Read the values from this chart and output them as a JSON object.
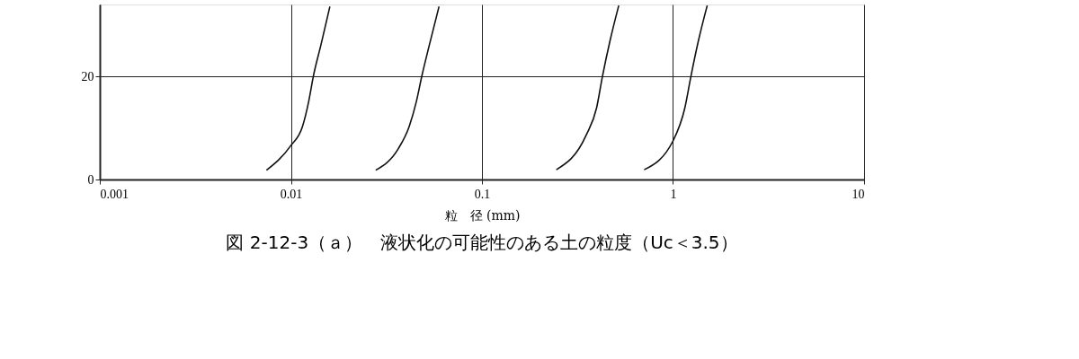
{
  "chart_data": {
    "type": "line",
    "title": "図 2-12-3（ａ）　液状化の可能性のある土の粒度（Uc＜3.5）",
    "xlabel": "粒　径 (mm)",
    "log": "x",
    "grid": true,
    "legend": false,
    "marker": "none",
    "line_style": "solid",
    "xlim": [
      0.001,
      10
    ],
    "xticks": [
      0.001,
      0.01,
      0.1,
      1,
      10
    ],
    "ylim": [
      0,
      34
    ],
    "yticks": [
      0,
      20
    ],
    "series": [
      {
        "color": "#111111",
        "x": [
          0.00745,
          0.01,
          0.0115,
          0.0124,
          0.0131,
          0.0144,
          0.016
        ],
        "values": [
          1.8,
          6.6,
          10.3,
          15.2,
          20,
          26.3,
          33.6
        ]
      },
      {
        "color": "#111111",
        "x": [
          0.0278,
          0.0365,
          0.0416,
          0.0454,
          0.0484,
          0.0532,
          0.0596
        ],
        "values": [
          1.8,
          6.0,
          10.3,
          15.2,
          20,
          26.3,
          33.6
        ]
      },
      {
        "color": "#111111",
        "x": [
          0.245,
          0.351,
          0.398,
          0.427,
          0.467,
          0.52
        ],
        "values": [
          1.9,
          8.6,
          13.9,
          20,
          26.8,
          33.8
        ]
      },
      {
        "color": "#111111",
        "x": [
          0.706,
          1.0,
          1.153,
          1.24,
          1.355,
          1.51
        ],
        "values": [
          1.9,
          7.5,
          13.9,
          20,
          26.8,
          33.8
        ]
      }
    ]
  }
}
